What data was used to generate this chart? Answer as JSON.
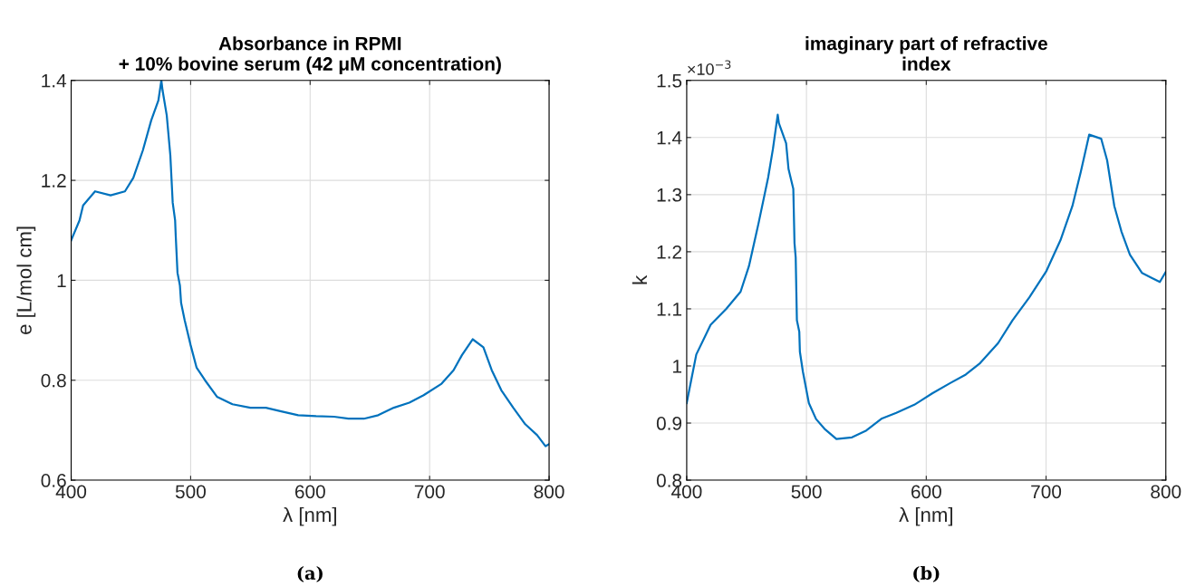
{
  "chart_data": [
    {
      "type": "line",
      "title": "Absorbance in RPMI\n+ 10% bovine serum (42 μM concentration)",
      "xlabel": "λ [nm]",
      "ylabel": "e [L/mol cm]",
      "xlim": [
        400,
        800
      ],
      "xticks": [
        400,
        500,
        600,
        700,
        800
      ],
      "ylim": [
        0.6,
        1.4
      ],
      "yticks": [
        0.6,
        0.8,
        1,
        1.2,
        1.4
      ],
      "grid": true,
      "series": [
        {
          "color": "#0072bd",
          "x": [
            400,
            407,
            410,
            420,
            433,
            445,
            452,
            460,
            467,
            473,
            475.5,
            476.5,
            480,
            483,
            485,
            487,
            487.5,
            489,
            491,
            492,
            495,
            500,
            505,
            512,
            522,
            535,
            550,
            563,
            575,
            590,
            605,
            620,
            632,
            645,
            657,
            670,
            683,
            695,
            710,
            720,
            727,
            736,
            745,
            752,
            760,
            770,
            780,
            790,
            797,
            800
          ],
          "values": [
            1.08,
            1.12,
            1.15,
            1.178,
            1.17,
            1.178,
            1.205,
            1.26,
            1.32,
            1.36,
            1.4,
            1.38,
            1.33,
            1.25,
            1.155,
            1.12,
            1.09,
            1.015,
            0.99,
            0.955,
            0.92,
            0.87,
            0.825,
            0.8,
            0.767,
            0.752,
            0.745,
            0.745,
            0.738,
            0.73,
            0.728,
            0.727,
            0.723,
            0.723,
            0.73,
            0.745,
            0.755,
            0.77,
            0.793,
            0.82,
            0.85,
            0.882,
            0.866,
            0.82,
            0.78,
            0.745,
            0.712,
            0.69,
            0.668,
            0.672
          ]
        }
      ],
      "annotations": [
        "(a)"
      ]
    },
    {
      "type": "line",
      "title": "imaginary part of refractive\nindex",
      "xlabel": "λ [nm]",
      "ylabel": "k",
      "xlim": [
        400,
        800
      ],
      "xticks": [
        400,
        500,
        600,
        700,
        800
      ],
      "ylim": [
        0.8,
        1.5
      ],
      "yticks": [
        0.8,
        0.9,
        1,
        1.1,
        1.2,
        1.3,
        1.4,
        1.5
      ],
      "grid": true,
      "series": [
        {
          "color": "#0072bd",
          "x": [
            400,
            408,
            420,
            433,
            445,
            452,
            460,
            468,
            472,
            476,
            477,
            483,
            485,
            489,
            490,
            491,
            492,
            494,
            494.5,
            497,
            502,
            508,
            515,
            525,
            538,
            550,
            563,
            575,
            590,
            605,
            620,
            633,
            645,
            660,
            672,
            686,
            700,
            712,
            722,
            729,
            736,
            746,
            751,
            757,
            763,
            770,
            780,
            795,
            800
          ],
          "values": [
            0.935,
            1.02,
            1.072,
            1.1,
            1.13,
            1.175,
            1.25,
            1.33,
            1.38,
            1.44,
            1.425,
            1.39,
            1.345,
            1.31,
            1.215,
            1.19,
            1.08,
            1.06,
            1.025,
            0.99,
            0.935,
            0.907,
            0.89,
            0.872,
            0.875,
            0.887,
            0.908,
            0.918,
            0.932,
            0.952,
            0.97,
            0.985,
            1.005,
            1.04,
            1.08,
            1.12,
            1.165,
            1.22,
            1.28,
            1.34,
            1.405,
            1.398,
            1.36,
            1.28,
            1.235,
            1.195,
            1.163,
            1.147,
            1.165
          ]
        }
      ],
      "annotations": [
        "×10$^{−3}$",
        "(b)"
      ]
    }
  ]
}
